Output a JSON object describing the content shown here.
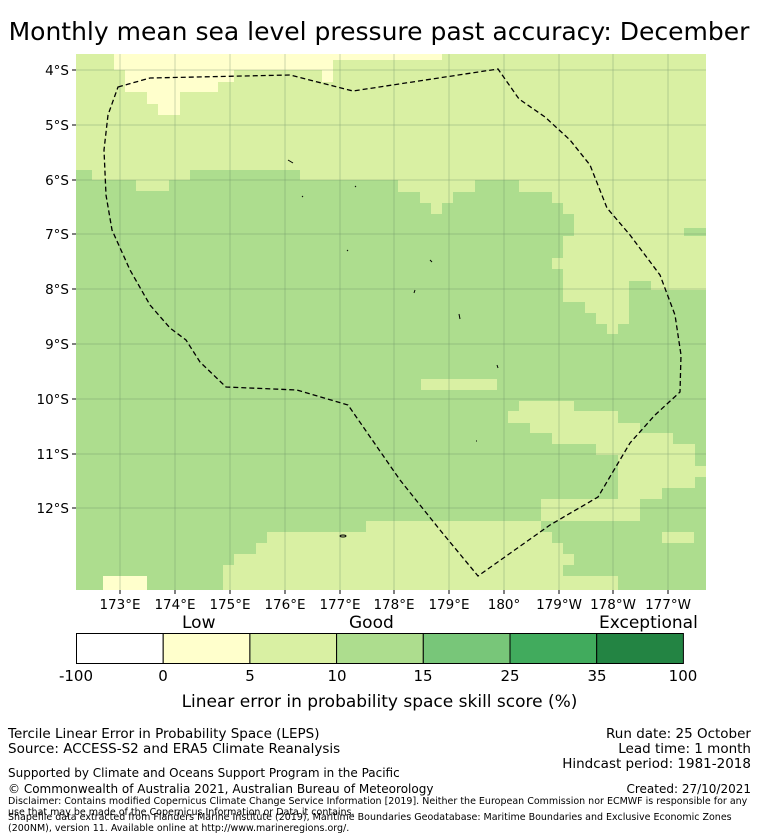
{
  "title": "Monthly mean sea level pressure past accuracy: December",
  "map": {
    "lat_labels": [
      "4°S",
      "5°S",
      "6°S",
      "7°S",
      "8°S",
      "9°S",
      "10°S",
      "11°S",
      "12°S"
    ],
    "lon_labels": [
      "173°E",
      "174°E",
      "175°E",
      "176°E",
      "177°E",
      "178°E",
      "179°E",
      "180°",
      "179°W",
      "178°W",
      "177°W"
    ],
    "region_outline": "Tuvalu EEZ (dashed)"
  },
  "colorbar": {
    "category_labels": [
      "Low",
      "Good",
      "Exceptional"
    ],
    "ticks": [
      "-100",
      "0",
      "5",
      "10",
      "15",
      "25",
      "35",
      "100"
    ],
    "colors": [
      "#ffffff",
      "#ffffcc",
      "#d9f0a3",
      "#addd8e",
      "#78c679",
      "#41ab5d",
      "#238443"
    ],
    "title": "Linear error in probability space skill score (%)"
  },
  "footer": {
    "method": "Tercile Linear Error in Probability Space (LEPS)",
    "source": "Source: ACCESS-S2 and ERA5 Climate Reanalysis",
    "run_date": "Run date: 25 October",
    "lead_time": "Lead time: 1 month",
    "hindcast": "Hindcast period: 1981-2018",
    "support": "Supported by Climate and Oceans Support Program in the Pacific",
    "copyright": "© Commonwealth of Australia 2021, Australian Bureau of Meteorology",
    "created": "Created: 27/10/2021",
    "disclaimer": "Disclaimer: Contains modified Copernicus Climate Change Service Information [2019]. Neither the European Commission nor ECMWF is responsible for any use that may be made of the Copernicus Information or Data it contains.",
    "shapefile": "Shapefile data extracted from Flanders Marine Institute (2019), Maritime Boundaries Geodatabase: Maritime Boundaries and Exclusive Economic Zones (200NM), version 11. Available online at http://www.marineregions.org/."
  }
}
